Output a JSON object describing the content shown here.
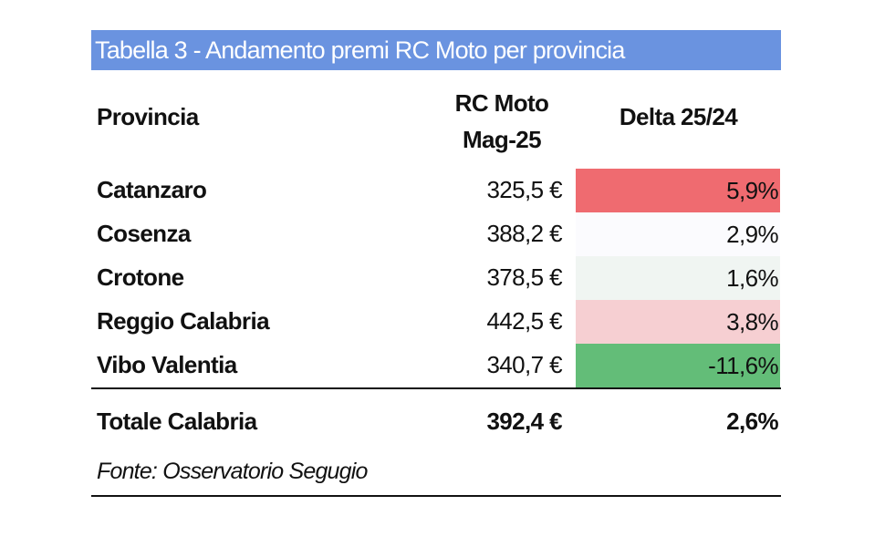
{
  "table": {
    "title": "Tabella 3 - Andamento premi RC Moto per provincia",
    "title_bg": "#6a93e0",
    "headers": {
      "provincia": "Provincia",
      "rc_moto_line1": "RC Moto",
      "rc_moto_line2": "Mag-25",
      "delta": "Delta 25/24"
    },
    "rows": [
      {
        "provincia": "Catanzaro",
        "rc_moto": "325,5 €",
        "delta": "5,9%",
        "delta_bg": "#ef6b70"
      },
      {
        "provincia": "Cosenza",
        "rc_moto": "388,2 €",
        "delta": "2,9%",
        "delta_bg": "#fbfbfe"
      },
      {
        "provincia": "Crotone",
        "rc_moto": "378,5 €",
        "delta": "1,6%",
        "delta_bg": "#f0f5f2"
      },
      {
        "provincia": "Reggio Calabria",
        "rc_moto": "442,5 €",
        "delta": "3,8%",
        "delta_bg": "#f6cfd2"
      },
      {
        "provincia": "Vibo Valentia",
        "rc_moto": "340,7 €",
        "delta": "-11,6%",
        "delta_bg": "#63bd78"
      }
    ],
    "total": {
      "provincia": "Totale Calabria",
      "rc_moto": "392,4 €",
      "delta": "2,6%"
    },
    "source": "Fonte: Osservatorio Segugio"
  }
}
